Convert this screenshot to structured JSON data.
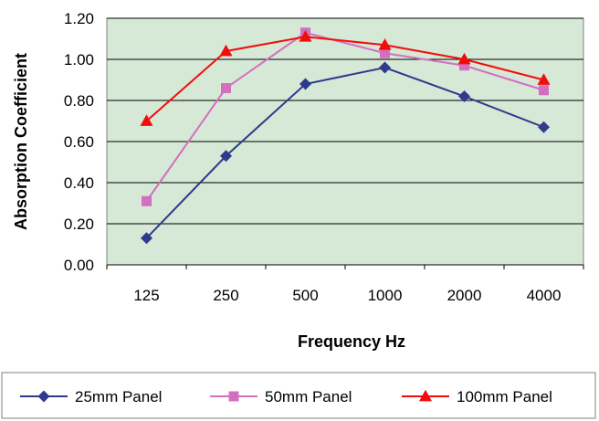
{
  "chart_data": {
    "type": "line",
    "xlabel": "Frequency Hz",
    "ylabel": "Absorption Coefficient",
    "categories": [
      "125",
      "250",
      "500",
      "1000",
      "2000",
      "4000"
    ],
    "ylim": [
      0,
      1.2
    ],
    "yticks": [
      "0.00",
      "0.20",
      "0.40",
      "0.60",
      "0.80",
      "1.00",
      "1.20"
    ],
    "grid": "horizontal",
    "legend_position": "bottom",
    "plot_background": "#d6e8d6",
    "series": [
      {
        "name": "25mm Panel",
        "color": "#2e3a8c",
        "marker": "diamond",
        "values": [
          0.13,
          0.53,
          0.88,
          0.96,
          0.82,
          0.67
        ]
      },
      {
        "name": "50mm Panel",
        "color": "#d46fc0",
        "marker": "square",
        "values": [
          0.31,
          0.86,
          1.13,
          1.03,
          0.97,
          0.85
        ]
      },
      {
        "name": "100mm Panel",
        "color": "#f20d0d",
        "marker": "triangle",
        "values": [
          0.7,
          1.04,
          1.11,
          1.07,
          1.0,
          0.9
        ]
      }
    ]
  }
}
